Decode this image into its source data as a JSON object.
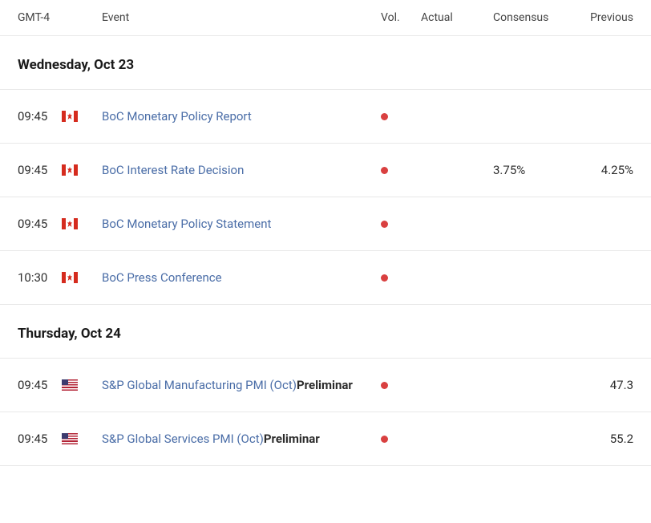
{
  "header": {
    "time_col": "GMT-4",
    "event_col": "Event",
    "vol_col": "Vol.",
    "actual_col": "Actual",
    "consensus_col": "Consensus",
    "previous_col": "Previous"
  },
  "colors": {
    "link": "#4a6da7",
    "text": "#2c2c2c",
    "border": "#e8e8e8",
    "vol_dot": "#d94040",
    "background": "#ffffff"
  },
  "groups": [
    {
      "date_label": "Wednesday, Oct 23",
      "events": [
        {
          "time": "09:45",
          "flag": "canada",
          "name": "BoC Monetary Policy Report",
          "suffix": "",
          "vol": "high",
          "actual": "",
          "consensus": "",
          "previous": ""
        },
        {
          "time": "09:45",
          "flag": "canada",
          "name": "BoC Interest Rate Decision",
          "suffix": "",
          "vol": "high",
          "actual": "",
          "consensus": "3.75%",
          "previous": "4.25%"
        },
        {
          "time": "09:45",
          "flag": "canada",
          "name": "BoC Monetary Policy Statement",
          "suffix": "",
          "vol": "high",
          "actual": "",
          "consensus": "",
          "previous": ""
        },
        {
          "time": "10:30",
          "flag": "canada",
          "name": "BoC Press Conference",
          "suffix": "",
          "vol": "high",
          "actual": "",
          "consensus": "",
          "previous": ""
        }
      ]
    },
    {
      "date_label": "Thursday, Oct 24",
      "events": [
        {
          "time": "09:45",
          "flag": "us",
          "name": "S&P Global Manufacturing PMI (Oct)",
          "suffix": "Preliminar",
          "vol": "high",
          "actual": "",
          "consensus": "",
          "previous": "47.3"
        },
        {
          "time": "09:45",
          "flag": "us",
          "name": "S&P Global Services PMI (Oct)",
          "suffix": "Preliminar",
          "vol": "high",
          "actual": "",
          "consensus": "",
          "previous": "55.2"
        }
      ]
    }
  ]
}
